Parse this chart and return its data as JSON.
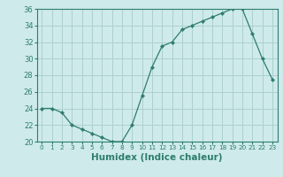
{
  "x": [
    0,
    1,
    2,
    3,
    4,
    5,
    6,
    7,
    8,
    9,
    10,
    11,
    12,
    13,
    14,
    15,
    16,
    17,
    18,
    19,
    20,
    21,
    22,
    23
  ],
  "y": [
    24,
    24,
    23.5,
    22,
    21.5,
    21,
    20.5,
    20,
    20,
    22,
    25.5,
    29,
    31.5,
    32,
    33.5,
    34,
    34.5,
    35,
    35.5,
    36,
    36,
    33,
    30,
    27.5
  ],
  "line_color": "#2e7d6e",
  "marker": "D",
  "marker_size": 2.2,
  "bg_color": "#ceeaea",
  "grid_color": "#aed0d0",
  "xlabel": "Humidex (Indice chaleur)",
  "ylim": [
    20,
    36
  ],
  "xlim": [
    -0.5,
    23.5
  ],
  "yticks": [
    20,
    22,
    24,
    26,
    28,
    30,
    32,
    34,
    36
  ],
  "xticks": [
    0,
    1,
    2,
    3,
    4,
    5,
    6,
    7,
    8,
    9,
    10,
    11,
    12,
    13,
    14,
    15,
    16,
    17,
    18,
    19,
    20,
    21,
    22,
    23
  ],
  "tick_fontsize": 6,
  "label_fontsize": 7.5
}
